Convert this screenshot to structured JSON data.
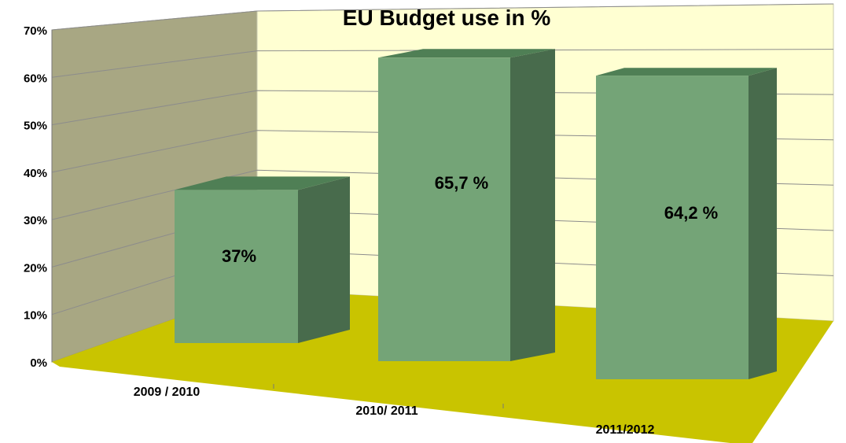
{
  "chart_data": {
    "type": "bar",
    "title": "EU Budget use in %",
    "categories": [
      "2009 / 2010",
      "2010/ 2011",
      "2011/2012"
    ],
    "values": [
      37,
      65.7,
      64.2
    ],
    "data_labels": [
      "37%",
      "65,7 %",
      "64,2 %"
    ],
    "y_ticks": [
      "0%",
      "10%",
      "20%",
      "30%",
      "40%",
      "50%",
      "60%",
      "70%"
    ],
    "ylim": [
      0,
      70
    ],
    "grid": true,
    "legend": "none",
    "colors": {
      "bar_front": "#74a477",
      "bar_side": "#486b4c",
      "bar_top": "#4f7f55",
      "back_wall": "#ffffd2",
      "side_wall": "#a8a783",
      "floor": "#c9c400",
      "gridline": "#8c8c8c"
    }
  }
}
